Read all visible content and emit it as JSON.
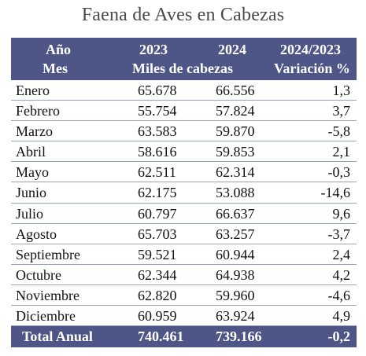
{
  "title": "Faena de Aves en Cabezas",
  "header": {
    "row1": {
      "c1": "Año",
      "c2": "2023",
      "c3": "2024",
      "c4": "2024/2023"
    },
    "row2": {
      "c1": "Mes",
      "c23": "Miles de cabezas",
      "c4": "Variación %"
    }
  },
  "rows": [
    {
      "mes": "Enero",
      "y2023": "65.678",
      "y2024": "66.556",
      "var": "1,3"
    },
    {
      "mes": "Febrero",
      "y2023": "55.754",
      "y2024": "57.824",
      "var": "3,7"
    },
    {
      "mes": "Marzo",
      "y2023": "63.583",
      "y2024": "59.870",
      "var": "-5,8"
    },
    {
      "mes": "Abril",
      "y2023": "58.616",
      "y2024": "59.853",
      "var": "2,1"
    },
    {
      "mes": "Mayo",
      "y2023": "62.511",
      "y2024": "62.314",
      "var": "-0,3"
    },
    {
      "mes": "Junio",
      "y2023": "62.175",
      "y2024": "53.088",
      "var": "-14,6"
    },
    {
      "mes": "Julio",
      "y2023": "60.797",
      "y2024": "66.637",
      "var": "9,6"
    },
    {
      "mes": "Agosto",
      "y2023": "65.703",
      "y2024": "63.257",
      "var": "-3,7"
    },
    {
      "mes": "Septiembre",
      "y2023": "59.521",
      "y2024": "60.944",
      "var": "2,4"
    },
    {
      "mes": "Octubre",
      "y2023": "62.344",
      "y2024": "64.938",
      "var": "4,2"
    },
    {
      "mes": "Noviembre",
      "y2023": "62.820",
      "y2024": "59.960",
      "var": "-4,6"
    },
    {
      "mes": "Diciembre",
      "y2023": "60.959",
      "y2024": "63.924",
      "var": "4,9"
    }
  ],
  "total": {
    "label": "Total Anual",
    "y2023": "740.461",
    "y2024": "739.166",
    "var": "-0,2"
  }
}
